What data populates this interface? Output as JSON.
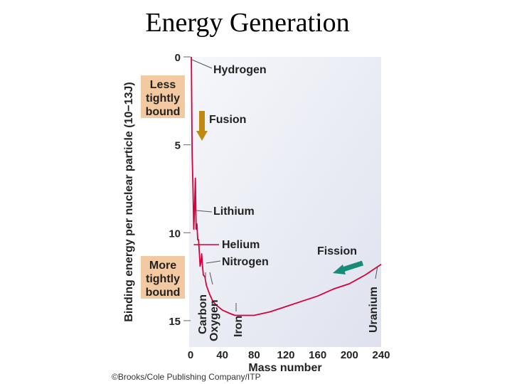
{
  "slide": {
    "title": "Energy Generation",
    "credit": "©Brooks/Cole Publishing Company/ITP"
  },
  "chart_data": {
    "type": "line",
    "xlabel": "Mass number",
    "ylabel": "Binding energy per nuclear particle (10−13J)",
    "xlim": [
      0,
      240
    ],
    "ylim": [
      0,
      16.5
    ],
    "y_inverted": true,
    "grid": false,
    "x_ticks": [
      0,
      40,
      80,
      120,
      160,
      200,
      240
    ],
    "y_ticks": [
      0,
      5,
      10,
      15
    ],
    "series": [
      {
        "x": [
          1,
          1.5,
          2,
          3,
          4,
          5,
          6,
          7,
          8,
          9,
          10,
          11,
          12,
          13,
          14,
          15,
          16,
          18,
          20,
          24,
          28,
          32,
          40,
          50,
          56,
          60,
          70,
          80,
          90,
          100,
          120,
          140,
          160,
          180,
          200,
          220,
          240
        ],
        "y": [
          0.0,
          3.0,
          5.5,
          7.5,
          9.8,
          8.6,
          6.9,
          9.8,
          9.5,
          10.4,
          10.4,
          11.1,
          11.9,
          11.7,
          11.2,
          11.9,
          12.4,
          12.5,
          13.0,
          13.5,
          13.9,
          14.1,
          14.4,
          14.6,
          14.7,
          14.7,
          14.7,
          14.7,
          14.6,
          14.5,
          14.2,
          13.9,
          13.6,
          13.2,
          12.9,
          12.4,
          11.8
        ]
      }
    ],
    "colors": {
      "curve": "#d8003c",
      "fusion_arrow": "#c08a10",
      "fission_arrow": "#178a78",
      "label_box": "#f2c9a0",
      "plot_bg": "#eaecf5"
    },
    "annotations": {
      "hydrogen": "Hydrogen",
      "fusion": "Fusion",
      "lithium": "Lithium",
      "helium": "Helium",
      "nitrogen": "Nitrogen",
      "fission": "Fission",
      "carbon": "Carbon",
      "oxygen": "Oxygen",
      "iron": "Iron",
      "uranium": "Uranium",
      "less_bound": [
        "Less",
        "tightly",
        "bound"
      ],
      "more_bound": [
        "More",
        "tightly",
        "bound"
      ]
    }
  }
}
